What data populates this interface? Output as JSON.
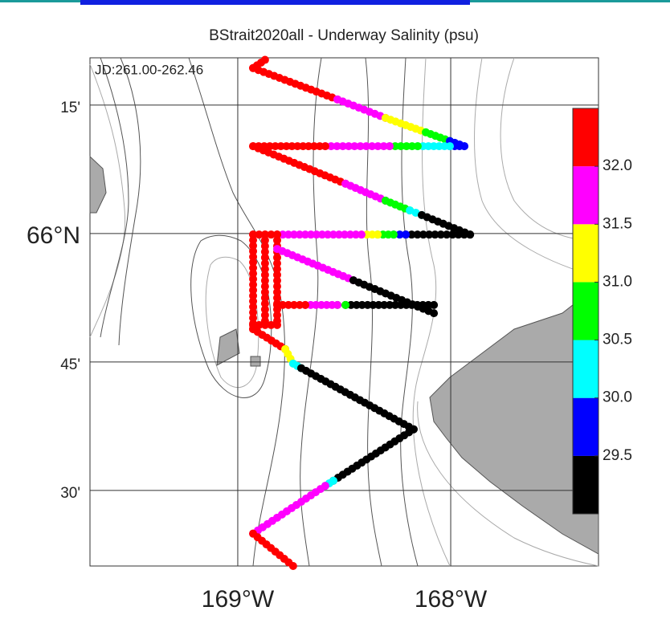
{
  "map": {
    "title": "BStrait2020all - Underway Salinity (psu)",
    "period": "JD:261.00-262.46",
    "lonlim": [
      -169.694,
      -167.306
    ],
    "latlim": [
      65.353,
      66.342
    ],
    "lonticks": [
      {
        "value": -169,
        "label": "169°W"
      },
      {
        "value": -168,
        "label": "168°W"
      }
    ],
    "latticks": [
      {
        "value": 66.25,
        "label": "15'"
      },
      {
        "value": 66,
        "label": "66°N"
      },
      {
        "value": 65.75,
        "label": "45'"
      },
      {
        "value": 65.5,
        "label": "30'"
      }
    ],
    "colorbar": {
      "range": [
        29.0,
        32.5
      ],
      "ticks": [
        29.5,
        {
          "value": 30,
          "label": "30.0"
        },
        30.5,
        {
          "value": 31,
          "label": "31.0"
        },
        31.5,
        {
          "value": 32,
          "label": "32.0"
        }
      ],
      "colors": [
        "#000000",
        "#0000ff",
        "#00ffff",
        "#00ff00",
        "#ffff00",
        "#ff00ff",
        "#ff0000"
      ]
    },
    "track": [
      {
        "from": [
          -168.872,
          66.338
        ],
        "to": [
          -168.928,
          66.322
        ],
        "salinity": 32.2
      },
      {
        "from": [
          -168.928,
          66.322
        ],
        "to": [
          -168.532,
          66.261
        ],
        "salinity": 32.2
      },
      {
        "from": [
          -168.532,
          66.261
        ],
        "to": [
          -168.306,
          66.225
        ],
        "salinity": 31.7
      },
      {
        "from": [
          -168.306,
          66.225
        ],
        "to": [
          -168.117,
          66.197
        ],
        "salinity": 31.2
      },
      {
        "from": [
          -168.117,
          66.197
        ],
        "to": [
          -168.004,
          66.18
        ],
        "salinity": 30.7
      },
      {
        "from": [
          -168.004,
          66.18
        ],
        "to": [
          -167.936,
          66.17
        ],
        "salinity": 29.7
      },
      {
        "from": [
          -167.936,
          66.17
        ],
        "to": [
          -168.004,
          66.17
        ],
        "salinity": 29.8
      },
      {
        "from": [
          -168.004,
          66.17
        ],
        "to": [
          -168.155,
          66.17
        ],
        "salinity": 30.2
      },
      {
        "from": [
          -168.155,
          66.17
        ],
        "to": [
          -168.287,
          66.17
        ],
        "salinity": 30.7
      },
      {
        "from": [
          -168.287,
          66.17
        ],
        "to": [
          -168.589,
          66.17
        ],
        "salinity": 31.7
      },
      {
        "from": [
          -168.589,
          66.17
        ],
        "to": [
          -168.928,
          66.17
        ],
        "salinity": 32.2
      },
      {
        "from": [
          -168.928,
          66.17
        ],
        "to": [
          -168.494,
          66.097
        ],
        "salinity": 32.3
      },
      {
        "from": [
          -168.494,
          66.097
        ],
        "to": [
          -168.306,
          66.064
        ],
        "salinity": 31.8
      },
      {
        "from": [
          -168.306,
          66.064
        ],
        "to": [
          -168.192,
          66.045
        ],
        "salinity": 30.8
      },
      {
        "from": [
          -168.192,
          66.045
        ],
        "to": [
          -168.136,
          66.036
        ],
        "salinity": 30.3
      },
      {
        "from": [
          -168.136,
          66.036
        ],
        "to": [
          -167.909,
          65.998
        ],
        "salinity": 29.2
      },
      {
        "from": [
          -167.909,
          65.998
        ],
        "to": [
          -168.211,
          65.998
        ],
        "salinity": 29.2
      },
      {
        "from": [
          -168.211,
          65.998
        ],
        "to": [
          -168.268,
          65.998
        ],
        "salinity": 29.8
      },
      {
        "from": [
          -168.268,
          65.998
        ],
        "to": [
          -168.343,
          65.998
        ],
        "salinity": 30.8
      },
      {
        "from": [
          -168.343,
          65.998
        ],
        "to": [
          -168.419,
          65.998
        ],
        "salinity": 31.2
      },
      {
        "from": [
          -168.419,
          65.998
        ],
        "to": [
          -168.815,
          65.998
        ],
        "salinity": 31.8
      },
      {
        "from": [
          -168.815,
          65.998
        ],
        "to": [
          -168.928,
          65.998
        ],
        "salinity": 32.2
      },
      {
        "from": [
          -168.928,
          65.998
        ],
        "to": [
          -168.928,
          65.814
        ],
        "salinity": 32.3
      },
      {
        "from": [
          -168.872,
          65.998
        ],
        "to": [
          -168.872,
          65.83
        ],
        "salinity": 32.3
      },
      {
        "from": [
          -168.815,
          65.998
        ],
        "to": [
          -168.815,
          65.83
        ],
        "salinity": 32.3
      },
      {
        "from": [
          -168.928,
          65.822
        ],
        "to": [
          -168.815,
          65.822
        ],
        "salinity": 32.3
      },
      {
        "from": [
          -168.815,
          65.97
        ],
        "to": [
          -168.457,
          65.909
        ],
        "salinity": 31.8
      },
      {
        "from": [
          -168.457,
          65.909
        ],
        "to": [
          -168.079,
          65.845
        ],
        "salinity": 29.2
      },
      {
        "from": [
          -168.079,
          65.861
        ],
        "to": [
          -168.494,
          65.861
        ],
        "salinity": 29.2
      },
      {
        "from": [
          -168.494,
          65.861
        ],
        "to": [
          -168.532,
          65.861
        ],
        "salinity": 30.8
      },
      {
        "from": [
          -168.532,
          65.861
        ],
        "to": [
          -168.683,
          65.861
        ],
        "salinity": 31.8
      },
      {
        "from": [
          -168.683,
          65.861
        ],
        "to": [
          -168.815,
          65.861
        ],
        "salinity": 32.2
      },
      {
        "from": [
          -168.928,
          65.814
        ],
        "to": [
          -168.777,
          65.775
        ],
        "salinity": 32.2
      },
      {
        "from": [
          -168.777,
          65.775
        ],
        "to": [
          -168.74,
          65.747
        ],
        "salinity": 31.2
      },
      {
        "from": [
          -168.74,
          65.747
        ],
        "to": [
          -168.702,
          65.738
        ],
        "salinity": 30.3
      },
      {
        "from": [
          -168.702,
          65.738
        ],
        "to": [
          -168.174,
          65.619
        ],
        "salinity": 29.2
      },
      {
        "from": [
          -168.174,
          65.619
        ],
        "to": [
          -168.551,
          65.519
        ],
        "salinity": 29.2
      },
      {
        "from": [
          -168.551,
          65.519
        ],
        "to": [
          -168.589,
          65.509
        ],
        "salinity": 30.3
      },
      {
        "from": [
          -168.589,
          65.509
        ],
        "to": [
          -168.928,
          65.416
        ],
        "salinity": 31.8
      },
      {
        "from": [
          -168.928,
          65.416
        ],
        "to": [
          -168.74,
          65.353
        ],
        "salinity": 32.2
      }
    ]
  }
}
